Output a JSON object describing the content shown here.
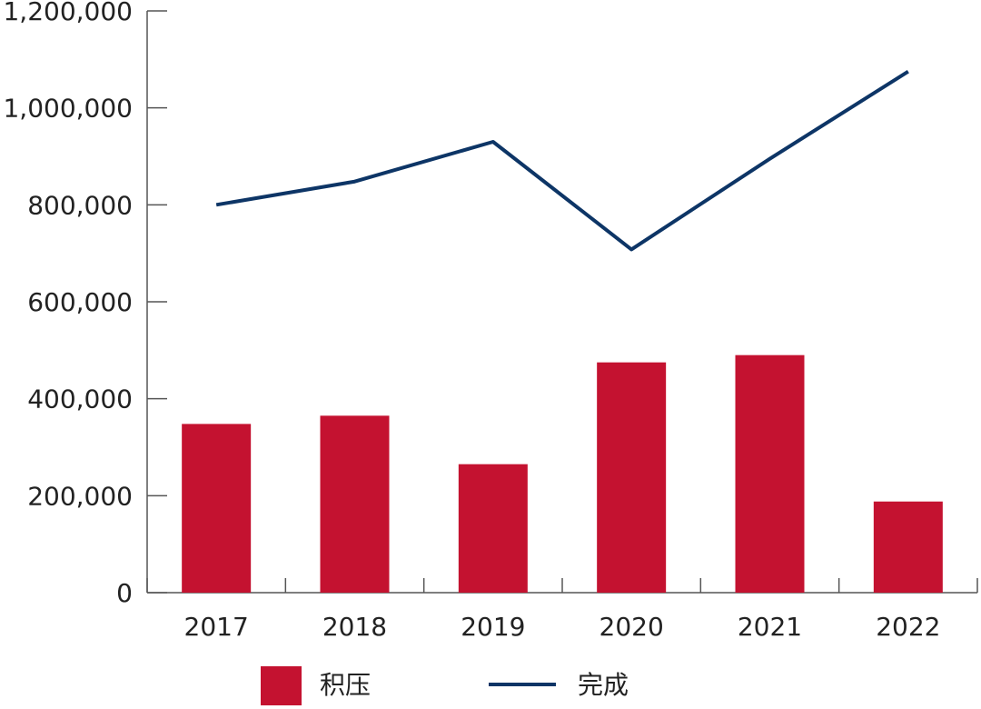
{
  "chart_data": {
    "type": "bar",
    "categories": [
      "2017",
      "2018",
      "2019",
      "2020",
      "2021",
      "2022"
    ],
    "series": [
      {
        "name": "积压",
        "kind": "bar",
        "color": "#c41230",
        "values": [
          348000,
          365000,
          265000,
          475000,
          490000,
          188000
        ]
      },
      {
        "name": "完成",
        "kind": "line",
        "color": "#0d3566",
        "values": [
          800000,
          848000,
          930000,
          708000,
          895000,
          1075000
        ]
      }
    ],
    "ylim": [
      0,
      1200000
    ],
    "yticks": [
      "0",
      "200,000",
      "400,000",
      "600,000",
      "800,000",
      "1,000,000",
      "1,200,000"
    ],
    "ytick_values": [
      0,
      200000,
      400000,
      600000,
      800000,
      1000000,
      1200000
    ],
    "grid": false,
    "legend_position": "bottom"
  }
}
